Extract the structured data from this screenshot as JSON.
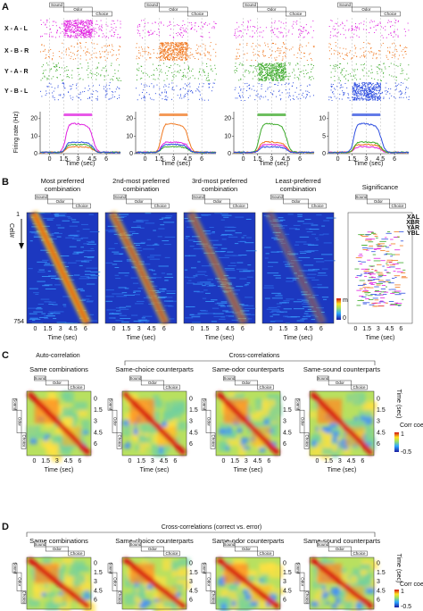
{
  "panel_labels": [
    "A",
    "B",
    "C",
    "D"
  ],
  "panel_a": {
    "rows": [
      "X - A - L",
      "X - B - R",
      "Y - A - R",
      "Y - B - L"
    ],
    "epochs": [
      "Sound",
      "Odor",
      "Choice"
    ],
    "y_label": "Firing rate (Hz)",
    "y_ticks": [
      [
        "20",
        "10",
        "0"
      ],
      [
        "20",
        "10",
        "0"
      ],
      [
        "20",
        "10",
        "0"
      ],
      [
        "10",
        "5",
        "0"
      ]
    ],
    "x_ticks": [
      "0",
      "1.5",
      "3",
      "4.5",
      "6"
    ],
    "x_label": "Time (sec)"
  },
  "panel_b": {
    "titles": [
      [
        "Most preferred",
        "combination"
      ],
      [
        "2nd-most preferred",
        "combination"
      ],
      [
        "3rd-most preferred",
        "combination"
      ],
      [
        "Least-preferred",
        "combination"
      ]
    ],
    "significance_title": "Significance",
    "legend": [
      "XAL",
      "XBR",
      "YAR",
      "YBL"
    ],
    "cell_first": "1",
    "cell_label": "Cell#",
    "cell_last": "754",
    "colorbar": [
      "max",
      "0"
    ],
    "x_ticks": [
      "0",
      "1.5",
      "3",
      "4.5",
      "6"
    ],
    "x_label": "Time (sec)"
  },
  "panel_c": {
    "group_titles": [
      "Auto-correlation",
      "Cross-correlations"
    ],
    "titles": [
      "Same combinations",
      "Same-choice counterparts",
      "Same-odor counterparts",
      "Same-sound counterparts"
    ],
    "ticks": [
      "0",
      "1.5",
      "3",
      "4.5",
      "6"
    ],
    "x_label": "Time (sec)",
    "y_label": "Time (sec)",
    "colorbar_label": "Corr coef",
    "colorbar_ticks": [
      "1",
      "-0.5"
    ]
  },
  "panel_d": {
    "title": "Cross-correlations (correct vs. error)",
    "titles": [
      "Same combinations",
      "Same-choice counterparts",
      "Same-odor counterparts",
      "Same-sound counterparts"
    ],
    "ticks": [
      "0",
      "1.5",
      "3",
      "4.5",
      "6"
    ],
    "y_label": "Time (sec)",
    "colorbar_label": "Corr coef",
    "colorbar_ticks": [
      "1",
      "-0.5"
    ]
  }
}
